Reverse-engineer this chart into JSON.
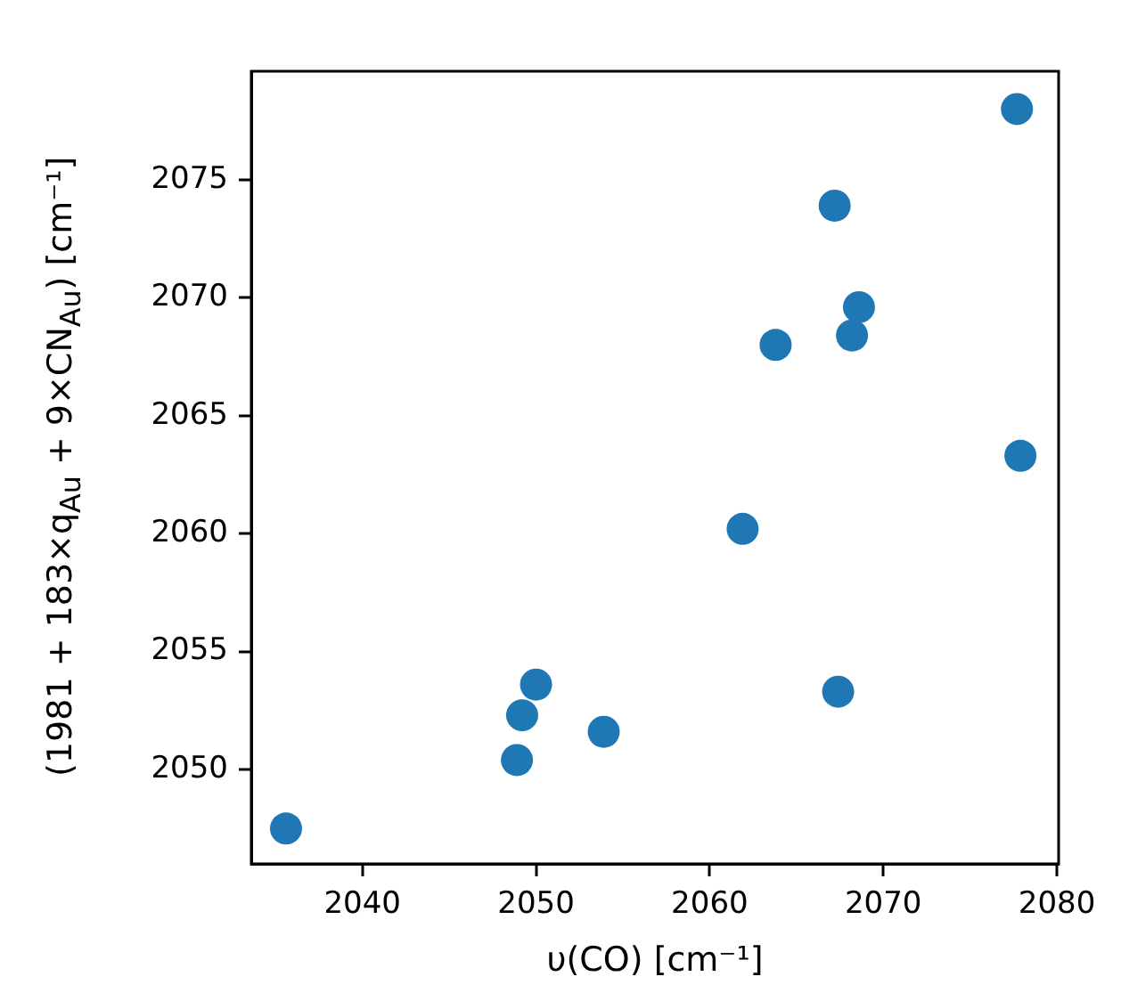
{
  "chart_data": {
    "type": "scatter",
    "xlabel": "υ(CO) [cm⁻¹]",
    "ylabel": "(1981 + 183×q$_{Au}$ + 9×CN$_{Au}$) [cm⁻¹]",
    "x": [
      2035.6,
      2048.9,
      2049.2,
      2050.0,
      2053.9,
      2061.9,
      2063.8,
      2067.2,
      2068.2,
      2068.6,
      2067.4,
      2077.7,
      2077.9
    ],
    "series": [
      {
        "color": "#1f77b4",
        "values": [
          2047.5,
          2050.4,
          2052.3,
          2053.6,
          2051.6,
          2060.2,
          2068.0,
          2073.9,
          2068.4,
          2069.6,
          2053.3,
          2078.0,
          2063.3
        ]
      }
    ],
    "xlim": [
      2033.6,
      2080.1
    ],
    "ylim": [
      2046.0,
      2079.6
    ],
    "xticks": [
      2040,
      2050,
      2060,
      2070,
      2080
    ],
    "yticks": [
      2050,
      2055,
      2060,
      2065,
      2070,
      2075
    ],
    "grid": false,
    "legend": false,
    "marker": "circle"
  }
}
